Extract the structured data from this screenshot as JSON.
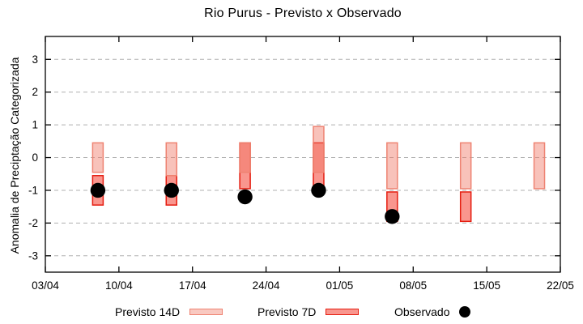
{
  "chart_data": {
    "type": "bar",
    "subtype": "floating-range-bars-with-scatter",
    "title": "Rio Purus - Previsto x Observado",
    "xlabel": "",
    "ylabel": "Anomalia de Preciptação Categorizada",
    "ylim": [
      -3.5,
      3.7
    ],
    "y_ticks": [
      3,
      2,
      1,
      0,
      -1,
      -2,
      -3
    ],
    "grid": "dashed horizontal at integer y values",
    "legend_position": "below plot, horizontal",
    "x_axis": {
      "tick_labels": [
        "03/04",
        "10/04",
        "17/04",
        "24/04",
        "01/05",
        "08/05",
        "15/05",
        "22/05"
      ],
      "tick_days": [
        0,
        7,
        14,
        21,
        28,
        35,
        42,
        49
      ],
      "range_days": 49
    },
    "legend": [
      {
        "label": "Previsto 14D",
        "swatch": "box-light-pink"
      },
      {
        "label": "Previsto 7D",
        "swatch": "box-red"
      },
      {
        "label": "Observado",
        "swatch": "black-dot"
      }
    ],
    "series": [
      {
        "name": "Previsto 14D",
        "type": "range-bar",
        "bars": [
          {
            "date": "08/04",
            "day": 5,
            "low": -0.45,
            "high": 0.45
          },
          {
            "date": "15/04",
            "day": 12,
            "low": -0.55,
            "high": 0.45
          },
          {
            "date": "22/04",
            "day": 19,
            "low": -0.45,
            "high": 0.45
          },
          {
            "date": "29/04",
            "day": 26,
            "low": -0.45,
            "high": 0.95
          },
          {
            "date": "06/05",
            "day": 33,
            "low": -0.95,
            "high": 0.45
          },
          {
            "date": "13/05",
            "day": 40,
            "low": -0.95,
            "high": 0.45
          },
          {
            "date": "20/05",
            "day": 47,
            "low": -0.95,
            "high": 0.45
          }
        ]
      },
      {
        "name": "Previsto 7D",
        "type": "range-bar",
        "bars": [
          {
            "date": "08/04",
            "day": 5,
            "low": -1.45,
            "high": -0.55
          },
          {
            "date": "15/04",
            "day": 12,
            "low": -1.45,
            "high": -0.55
          },
          {
            "date": "22/04",
            "day": 19,
            "low": -0.95,
            "high": 0.45
          },
          {
            "date": "29/04",
            "day": 26,
            "low": -0.95,
            "high": 0.45
          },
          {
            "date": "06/05",
            "day": 33,
            "low": -1.95,
            "high": -1.05
          },
          {
            "date": "13/05",
            "day": 40,
            "low": -1.95,
            "high": -1.05
          }
        ]
      },
      {
        "name": "Observado",
        "type": "scatter",
        "points": [
          {
            "date": "08/04",
            "day": 5,
            "value": -1.0
          },
          {
            "date": "15/04",
            "day": 12,
            "value": -1.0
          },
          {
            "date": "22/04",
            "day": 19,
            "value": -1.2
          },
          {
            "date": "29/04",
            "day": 26,
            "value": -1.0
          },
          {
            "date": "06/05",
            "day": 33,
            "value": -1.8
          }
        ]
      }
    ],
    "colors": {
      "previsto14d_fill_solid": "#f9c9c1",
      "previsto14d_fill_base": "#ef7766",
      "previsto14d_border": "#ee8372",
      "previsto7d_fill": "#f9968e",
      "previsto7d_border": "#e51d10",
      "overlap_fill": "#f5887c",
      "observado_dot": "#000000",
      "gridline": "#b0b0b0",
      "frame": "#000000"
    }
  }
}
